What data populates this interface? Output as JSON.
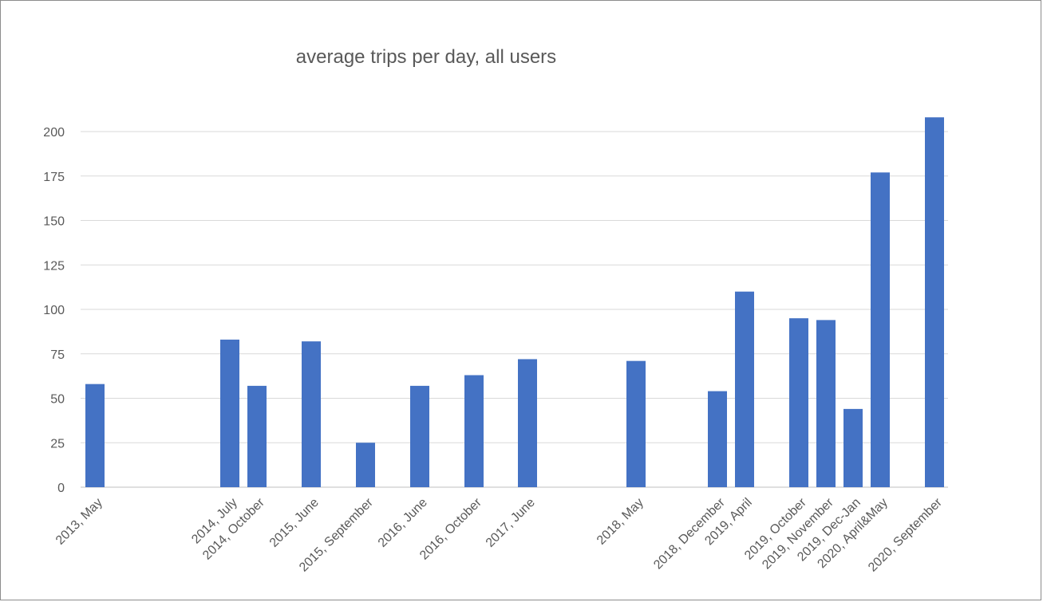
{
  "chart_data": {
    "type": "bar",
    "title": "average trips per day, all users",
    "xlabel": "",
    "ylabel": "",
    "ylim": [
      0,
      200
    ],
    "y_ticks": [
      "0",
      "25",
      "50",
      "75",
      "100",
      "125",
      "150",
      "175",
      "200"
    ],
    "grid": true,
    "legend": "none",
    "bar_color": "#4472c4",
    "categories": [
      "2013, May",
      "2014, July",
      "2014, October",
      "2015, June",
      "2015, September",
      "2016, June",
      "2016, October",
      "2017, June",
      "2018, May",
      "2018, December",
      "2019, April",
      "2019, October",
      "2019, November",
      "2019, Dec-Jan",
      "2020, April&May",
      "2020, September"
    ],
    "values": [
      58,
      83,
      57,
      82,
      25,
      57,
      63,
      72,
      71,
      54,
      110,
      95,
      94,
      44,
      177,
      208
    ]
  }
}
